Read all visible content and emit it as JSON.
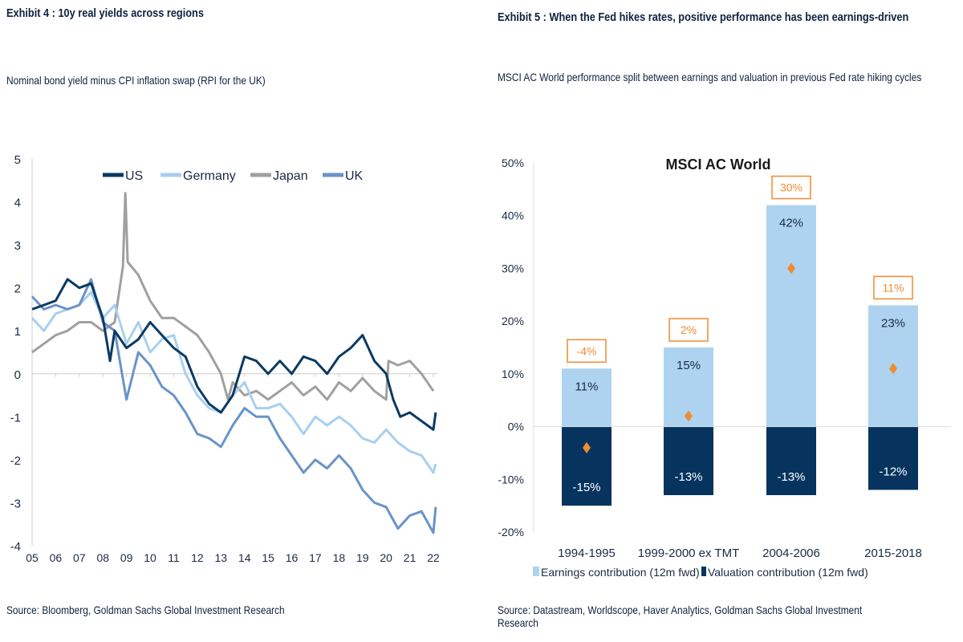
{
  "left": {
    "title": "Exhibit 4 : 10y real yields across regions",
    "subtitle": "Nominal bond yield minus CPI inflation swap (RPI for the UK)",
    "source": "Source: Bloomberg, Goldman Sachs Global Investment Research"
  },
  "right": {
    "title": "Exhibit 5 : When the Fed hikes rates, positive performance has been earnings-driven",
    "subtitle": "MSCI AC World performance split between earnings and valuation in previous Fed rate hiking cycles",
    "source": "Source: Datastream, Worldscope, Haver Analytics, Goldman Sachs Global Investment Research"
  },
  "chart_data": [
    {
      "type": "line",
      "title": "",
      "xlabel": "",
      "ylabel": "",
      "ylim": [
        -4,
        5
      ],
      "xlim": [
        2005,
        2022
      ],
      "yticks": [
        "5",
        "4",
        "3",
        "2",
        "1",
        "0",
        "-1",
        "-2",
        "-3",
        "-4"
      ],
      "xticks": [
        "05",
        "06",
        "07",
        "08",
        "09",
        "10",
        "11",
        "12",
        "13",
        "14",
        "15",
        "16",
        "17",
        "18",
        "19",
        "20",
        "21",
        "22"
      ],
      "legend": "top",
      "grid": false,
      "series": [
        {
          "name": "US",
          "color": "#0b3a63",
          "points": [
            [
              2005,
              1.5
            ],
            [
              2005.5,
              1.6
            ],
            [
              2006,
              1.7
            ],
            [
              2006.5,
              2.2
            ],
            [
              2007,
              2.0
            ],
            [
              2007.5,
              2.1
            ],
            [
              2008,
              1.3
            ],
            [
              2008.3,
              0.3
            ],
            [
              2008.5,
              1.0
            ],
            [
              2009,
              0.6
            ],
            [
              2009.5,
              0.8
            ],
            [
              2010,
              1.2
            ],
            [
              2010.5,
              0.9
            ],
            [
              2011,
              0.6
            ],
            [
              2011.5,
              0.4
            ],
            [
              2012,
              -0.3
            ],
            [
              2012.5,
              -0.7
            ],
            [
              2013,
              -0.9
            ],
            [
              2013.5,
              -0.5
            ],
            [
              2014,
              0.4
            ],
            [
              2014.5,
              0.3
            ],
            [
              2015,
              0.0
            ],
            [
              2015.5,
              0.3
            ],
            [
              2016,
              0.0
            ],
            [
              2016.5,
              0.4
            ],
            [
              2017,
              0.3
            ],
            [
              2017.5,
              0.0
            ],
            [
              2018,
              0.4
            ],
            [
              2018.5,
              0.6
            ],
            [
              2019,
              0.9
            ],
            [
              2019.5,
              0.3
            ],
            [
              2020,
              0.0
            ],
            [
              2020.3,
              -0.6
            ],
            [
              2020.6,
              -1.0
            ],
            [
              2021,
              -0.9
            ],
            [
              2021.5,
              -1.1
            ],
            [
              2022,
              -1.3
            ],
            [
              2022.1,
              -0.9
            ]
          ]
        },
        {
          "name": "Germany",
          "color": "#a9cfee",
          "points": [
            [
              2005,
              1.3
            ],
            [
              2005.5,
              1.0
            ],
            [
              2006,
              1.4
            ],
            [
              2006.5,
              1.5
            ],
            [
              2007,
              1.6
            ],
            [
              2007.5,
              1.9
            ],
            [
              2008,
              1.3
            ],
            [
              2008.5,
              1.6
            ],
            [
              2009,
              0.7
            ],
            [
              2009.5,
              1.2
            ],
            [
              2010,
              0.5
            ],
            [
              2010.5,
              0.8
            ],
            [
              2011,
              0.9
            ],
            [
              2011.5,
              0.0
            ],
            [
              2012,
              -0.5
            ],
            [
              2012.5,
              -0.8
            ],
            [
              2013,
              -0.9
            ],
            [
              2013.5,
              -0.5
            ],
            [
              2014,
              -0.2
            ],
            [
              2014.5,
              -0.8
            ],
            [
              2015,
              -0.8
            ],
            [
              2015.5,
              -0.7
            ],
            [
              2016,
              -1.0
            ],
            [
              2016.5,
              -1.4
            ],
            [
              2017,
              -1.0
            ],
            [
              2017.5,
              -1.2
            ],
            [
              2018,
              -1.0
            ],
            [
              2018.5,
              -1.2
            ],
            [
              2019,
              -1.5
            ],
            [
              2019.5,
              -1.6
            ],
            [
              2020,
              -1.3
            ],
            [
              2020.5,
              -1.6
            ],
            [
              2021,
              -1.8
            ],
            [
              2021.5,
              -1.9
            ],
            [
              2022,
              -2.3
            ],
            [
              2022.1,
              -2.1
            ]
          ]
        },
        {
          "name": "Japan",
          "color": "#a0a0a0",
          "points": [
            [
              2005,
              0.5
            ],
            [
              2005.5,
              0.7
            ],
            [
              2006,
              0.9
            ],
            [
              2006.5,
              1.0
            ],
            [
              2007,
              1.2
            ],
            [
              2007.5,
              1.2
            ],
            [
              2008,
              1.0
            ],
            [
              2008.5,
              1.2
            ],
            [
              2008.85,
              2.5
            ],
            [
              2008.95,
              4.2
            ],
            [
              2009.05,
              2.6
            ],
            [
              2009.5,
              2.3
            ],
            [
              2010,
              1.7
            ],
            [
              2010.5,
              1.3
            ],
            [
              2011,
              1.3
            ],
            [
              2011.5,
              1.1
            ],
            [
              2012,
              0.9
            ],
            [
              2012.5,
              0.5
            ],
            [
              2013,
              0.0
            ],
            [
              2013.3,
              -0.6
            ],
            [
              2013.5,
              -0.2
            ],
            [
              2014,
              -0.5
            ],
            [
              2014.5,
              -0.4
            ],
            [
              2015,
              -0.6
            ],
            [
              2015.5,
              -0.4
            ],
            [
              2016,
              -0.2
            ],
            [
              2016.5,
              -0.5
            ],
            [
              2017,
              -0.3
            ],
            [
              2017.5,
              -0.6
            ],
            [
              2018,
              -0.2
            ],
            [
              2018.5,
              -0.4
            ],
            [
              2019,
              -0.1
            ],
            [
              2019.5,
              -0.4
            ],
            [
              2020,
              -0.6
            ],
            [
              2020.1,
              0.3
            ],
            [
              2020.5,
              0.2
            ],
            [
              2021,
              0.3
            ],
            [
              2021.5,
              0.0
            ],
            [
              2022,
              -0.4
            ]
          ]
        },
        {
          "name": "UK",
          "color": "#6a93c8",
          "points": [
            [
              2005,
              1.8
            ],
            [
              2005.5,
              1.5
            ],
            [
              2006,
              1.6
            ],
            [
              2006.5,
              1.5
            ],
            [
              2007,
              1.6
            ],
            [
              2007.5,
              2.2
            ],
            [
              2008,
              1.2
            ],
            [
              2008.5,
              1.0
            ],
            [
              2009,
              -0.6
            ],
            [
              2009.5,
              0.5
            ],
            [
              2010,
              0.2
            ],
            [
              2010.5,
              -0.3
            ],
            [
              2011,
              -0.5
            ],
            [
              2011.5,
              -0.9
            ],
            [
              2012,
              -1.4
            ],
            [
              2012.5,
              -1.5
            ],
            [
              2013,
              -1.7
            ],
            [
              2013.5,
              -1.2
            ],
            [
              2014,
              -0.8
            ],
            [
              2014.5,
              -1.0
            ],
            [
              2015,
              -1.0
            ],
            [
              2015.5,
              -1.5
            ],
            [
              2016,
              -1.9
            ],
            [
              2016.5,
              -2.3
            ],
            [
              2017,
              -2.0
            ],
            [
              2017.5,
              -2.2
            ],
            [
              2018,
              -1.9
            ],
            [
              2018.5,
              -2.2
            ],
            [
              2019,
              -2.7
            ],
            [
              2019.5,
              -3.0
            ],
            [
              2020,
              -3.1
            ],
            [
              2020.5,
              -3.6
            ],
            [
              2021,
              -3.3
            ],
            [
              2021.5,
              -3.2
            ],
            [
              2022,
              -3.7
            ],
            [
              2022.1,
              -3.1
            ]
          ]
        }
      ]
    },
    {
      "type": "bar",
      "title": "MSCI AC World",
      "xlabel": "",
      "ylabel": "",
      "ylim": [
        -20,
        50
      ],
      "yticks": [
        "50%",
        "40%",
        "30%",
        "20%",
        "10%",
        "0%",
        "-10%",
        "-20%"
      ],
      "categories": [
        "1994-1995",
        "1999-2000 ex TMT",
        "2004-2006",
        "2015-2018"
      ],
      "series": [
        {
          "name": "Earnings contribution (12m fwd)",
          "color": "#aed3f0",
          "values": [
            11,
            15,
            42,
            23
          ],
          "labels": [
            "11%",
            "15%",
            "42%",
            "23%"
          ]
        },
        {
          "name": "Valuation contribution (12m fwd)",
          "color": "#06345e",
          "values": [
            -15,
            -13,
            -13,
            -12
          ],
          "labels": [
            "-15%",
            "-13%",
            "-13%",
            "-12%"
          ]
        }
      ],
      "total": {
        "color": "#f28a2e",
        "values": [
          -4,
          2,
          30,
          11
        ],
        "labels": [
          "-4%",
          "2%",
          "30%",
          "11%"
        ]
      },
      "legend": "bottom",
      "grid": false
    }
  ]
}
